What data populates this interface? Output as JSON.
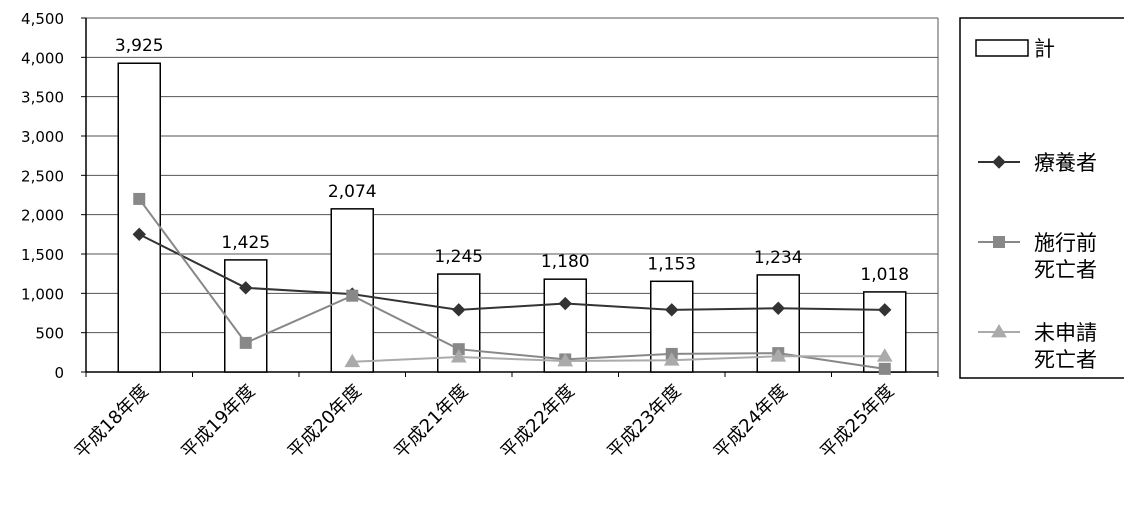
{
  "chart_data": {
    "type": "bar",
    "categories": [
      "平成18年度",
      "平成19年度",
      "平成20年度",
      "平成21年度",
      "平成22年度",
      "平成23年度",
      "平成24年度",
      "平成25年度"
    ],
    "ylim": [
      0,
      4500
    ],
    "yticks": [
      0,
      500,
      1000,
      1500,
      2000,
      2500,
      3000,
      3500,
      4000,
      4500
    ],
    "ytick_labels": [
      "0",
      "500",
      "1,000",
      "1,500",
      "2,000",
      "2,500",
      "3,000",
      "3,500",
      "4,000",
      "4,500"
    ],
    "grid": "horizontal",
    "legend_position": "right",
    "series": [
      {
        "name": "計",
        "kind": "bar",
        "values": [
          3925,
          1425,
          2074,
          1245,
          1180,
          1153,
          1234,
          1018
        ],
        "data_labels": [
          "3,925",
          "1,425",
          "2,074",
          "1,245",
          "1,180",
          "1,153",
          "1,234",
          "1,018"
        ],
        "color": "#000000"
      },
      {
        "name": "療養者",
        "kind": "line",
        "marker": "diamond",
        "values": [
          1750,
          1070,
          990,
          790,
          870,
          790,
          810,
          790
        ],
        "color": "#333333"
      },
      {
        "name": "施行前\n死亡者",
        "kind": "line",
        "marker": "square",
        "values": [
          2200,
          370,
          970,
          290,
          160,
          230,
          240,
          40
        ],
        "color": "#888888"
      },
      {
        "name": "未申請\n死亡者",
        "kind": "line",
        "marker": "triangle",
        "values": [
          null,
          null,
          130,
          190,
          140,
          150,
          200,
          200
        ],
        "color": "#aaaaaa"
      }
    ]
  }
}
